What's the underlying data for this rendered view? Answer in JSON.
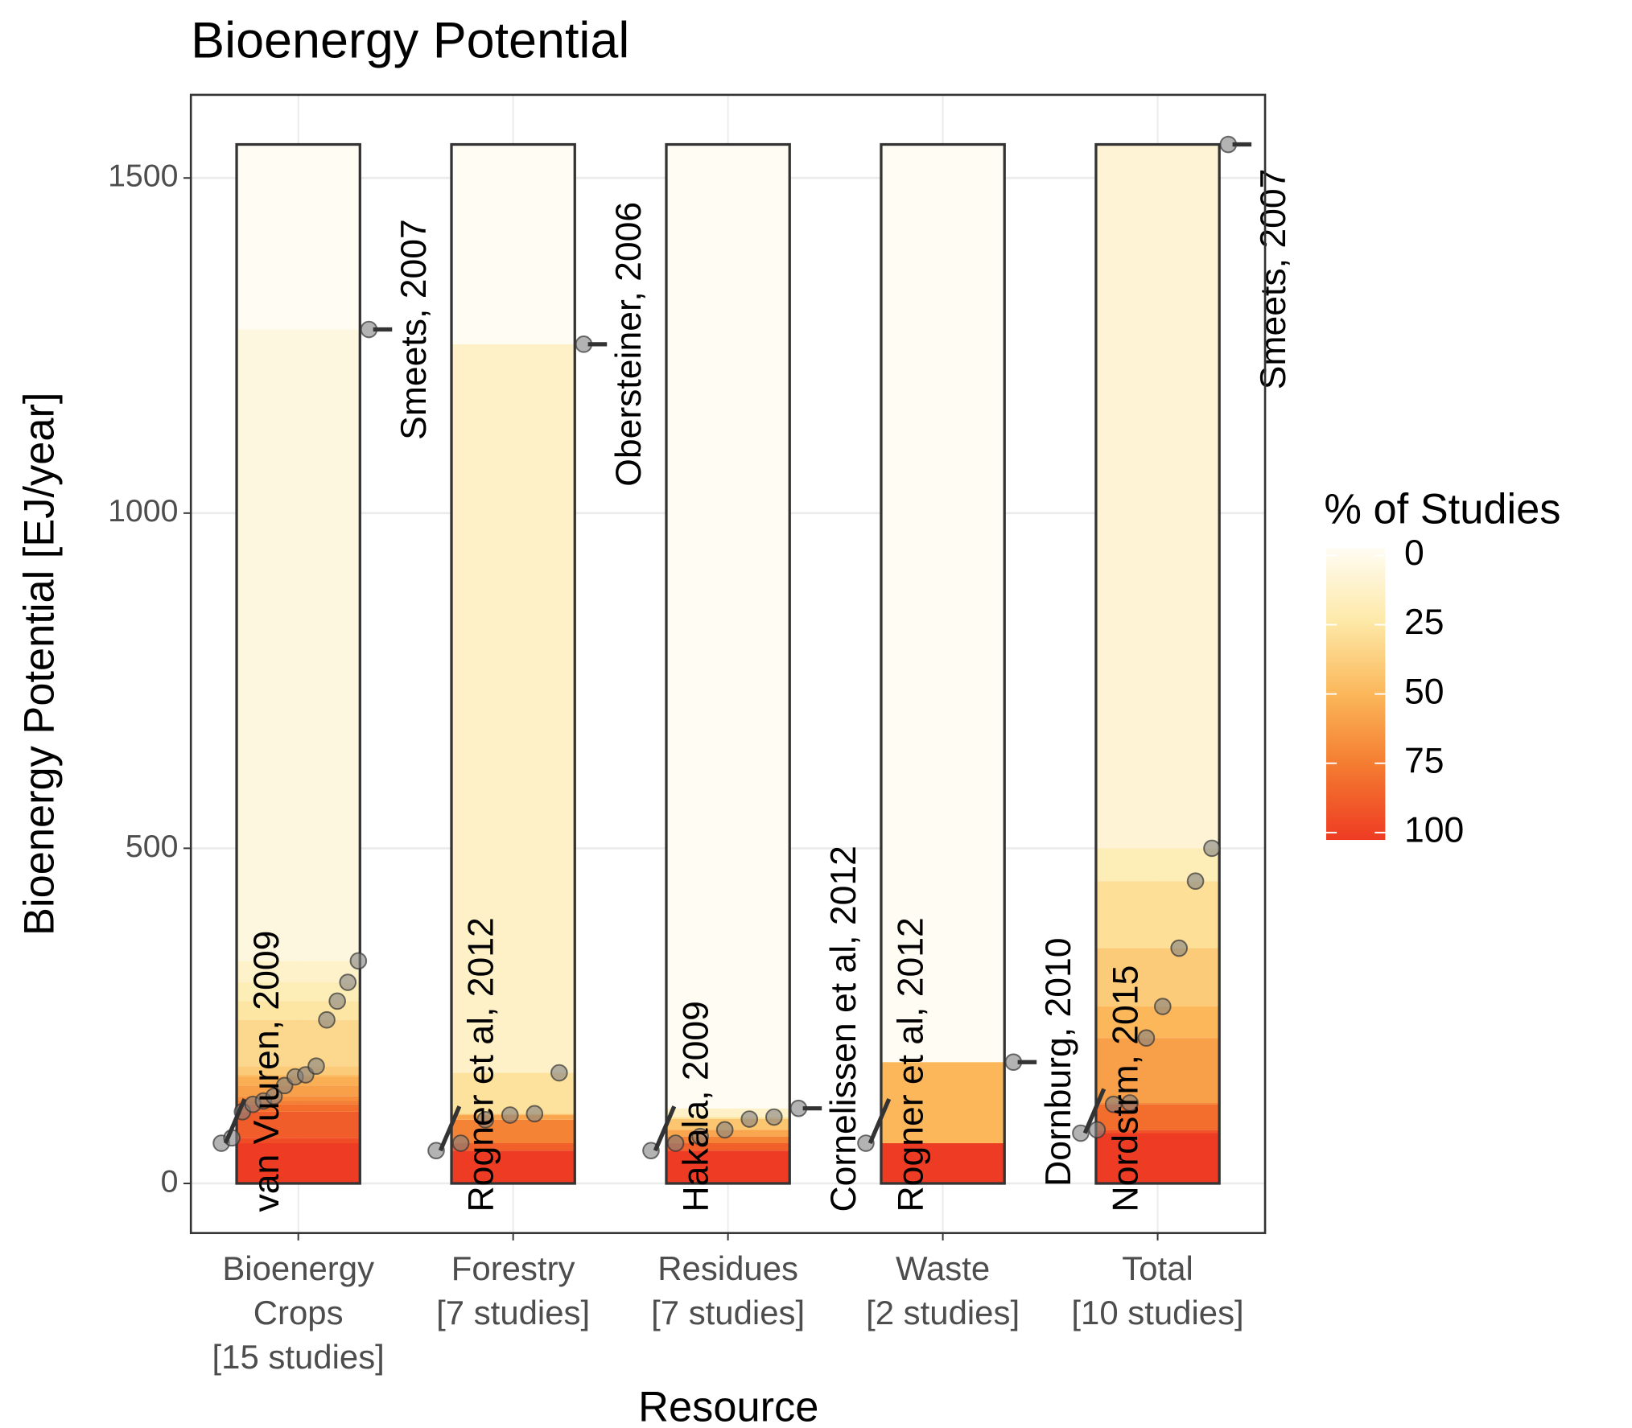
{
  "chart_data": {
    "type": "study-stripes",
    "title": "Bioenergy Potential",
    "x_label": "Resource",
    "y_label": "Bioenergy Potential [EJ/year]",
    "ylim": [
      -74,
      1624
    ],
    "yticks": [
      0,
      500,
      1000,
      1500
    ],
    "grid": true,
    "point_color": "#808080",
    "groups": [
      {
        "label": [
          "Bioenergy",
          "Crops",
          "[15 studies]"
        ],
        "values": [
          60,
          68,
          107,
          118,
          123,
          130,
          146,
          159,
          162,
          175,
          244,
          272,
          300,
          332,
          1274
        ],
        "low_label": "van Vuuren, 2009",
        "high_label": "Smeets, 2007"
      },
      {
        "label": [
          "Forestry",
          "[7 studies]"
        ],
        "values": [
          49,
          60,
          95,
          102,
          104,
          165,
          1252
        ],
        "low_label": "Rogner et al, 2012",
        "high_label": "Obersteiner, 2006"
      },
      {
        "label": [
          "Residues",
          "[7 studies]"
        ],
        "values": [
          49,
          60,
          70,
          80,
          96,
          99,
          112
        ],
        "low_label": "Hakala, 2009",
        "high_label": "Cornelissen et al, 2012"
      },
      {
        "label": [
          "Waste",
          "[2 studies]"
        ],
        "values": [
          60,
          181
        ],
        "low_label": "Rogner et al, 2012",
        "high_label": "Dornburg, 2010"
      },
      {
        "label": [
          "Total",
          "[10 studies]"
        ],
        "values": [
          75,
          80,
          118,
          120,
          217,
          264,
          351,
          451,
          500,
          1550
        ],
        "low_label": "Nordstrm, 2015",
        "high_label": "Smeets, 2007"
      }
    ],
    "legend": {
      "title": "% of Studies",
      "ticks": [
        0,
        25,
        50,
        75,
        100
      ],
      "colors": [
        "#fffcf3",
        "#fde9a8",
        "#fbb75a",
        "#f47a30",
        "#ee3b23"
      ]
    }
  }
}
